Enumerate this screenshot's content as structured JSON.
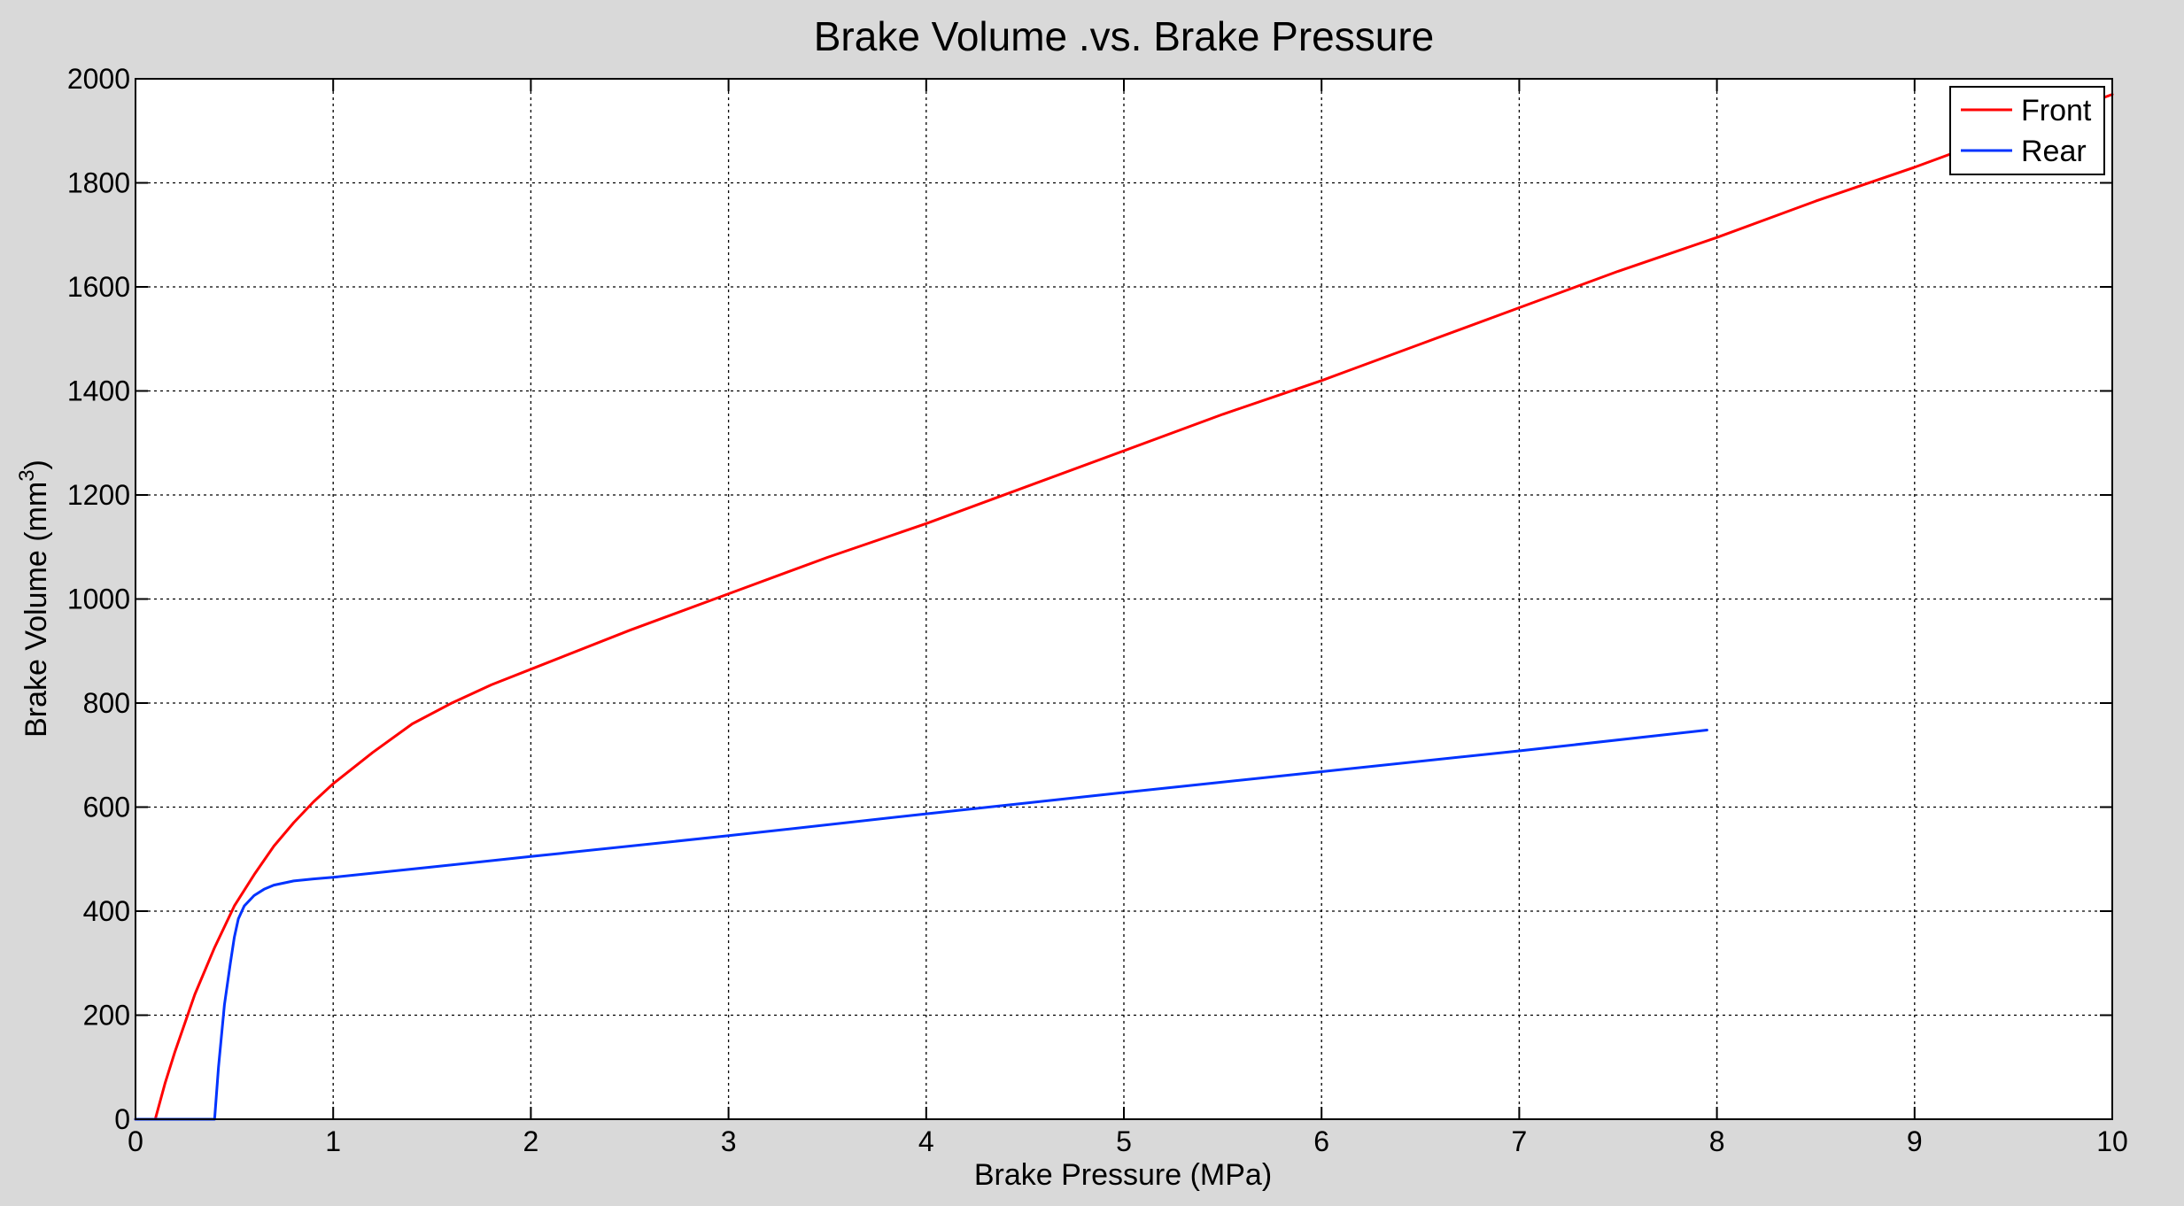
{
  "chart_data": {
    "type": "line",
    "title": "Brake Volume .vs. Brake Pressure",
    "xlabel": "Brake Pressure (MPa)",
    "ylabel_main": "Brake Volume (mm",
    "ylabel_sup": "3",
    "ylabel_close": ")",
    "xlim": [
      0,
      10
    ],
    "ylim": [
      0,
      2000
    ],
    "xticks": [
      0,
      1,
      2,
      3,
      4,
      5,
      6,
      7,
      8,
      9,
      10
    ],
    "yticks": [
      0,
      200,
      400,
      600,
      800,
      1000,
      1200,
      1400,
      1600,
      1800,
      2000
    ],
    "grid": true,
    "legend_position": "top-right",
    "series": [
      {
        "name": "Front",
        "color": "#ff0000",
        "x": [
          0,
          0.1,
          0.15,
          0.2,
          0.3,
          0.4,
          0.5,
          0.6,
          0.7,
          0.8,
          0.9,
          1.0,
          1.2,
          1.4,
          1.6,
          1.8,
          2.0,
          2.5,
          3.0,
          3.5,
          4.0,
          4.5,
          5.0,
          5.5,
          6.0,
          6.5,
          7.0,
          7.5,
          8.0,
          8.5,
          9.0,
          9.5,
          10.0
        ],
        "y": [
          0,
          0,
          70,
          130,
          240,
          330,
          410,
          470,
          525,
          570,
          610,
          645,
          705,
          760,
          800,
          835,
          865,
          940,
          1010,
          1080,
          1145,
          1215,
          1285,
          1355,
          1420,
          1490,
          1560,
          1630,
          1695,
          1765,
          1830,
          1900,
          1970
        ]
      },
      {
        "name": "Rear",
        "color": "#0033ff",
        "x": [
          0,
          0.4,
          0.42,
          0.45,
          0.48,
          0.5,
          0.52,
          0.55,
          0.6,
          0.65,
          0.7,
          0.8,
          0.9,
          1.0,
          1.5,
          2.0,
          3.0,
          4.0,
          5.0,
          6.0,
          7.0,
          7.95
        ],
        "y": [
          0,
          0,
          100,
          220,
          300,
          350,
          385,
          410,
          430,
          442,
          450,
          458,
          462,
          465,
          485,
          505,
          545,
          587,
          628,
          668,
          708,
          748
        ]
      }
    ]
  }
}
